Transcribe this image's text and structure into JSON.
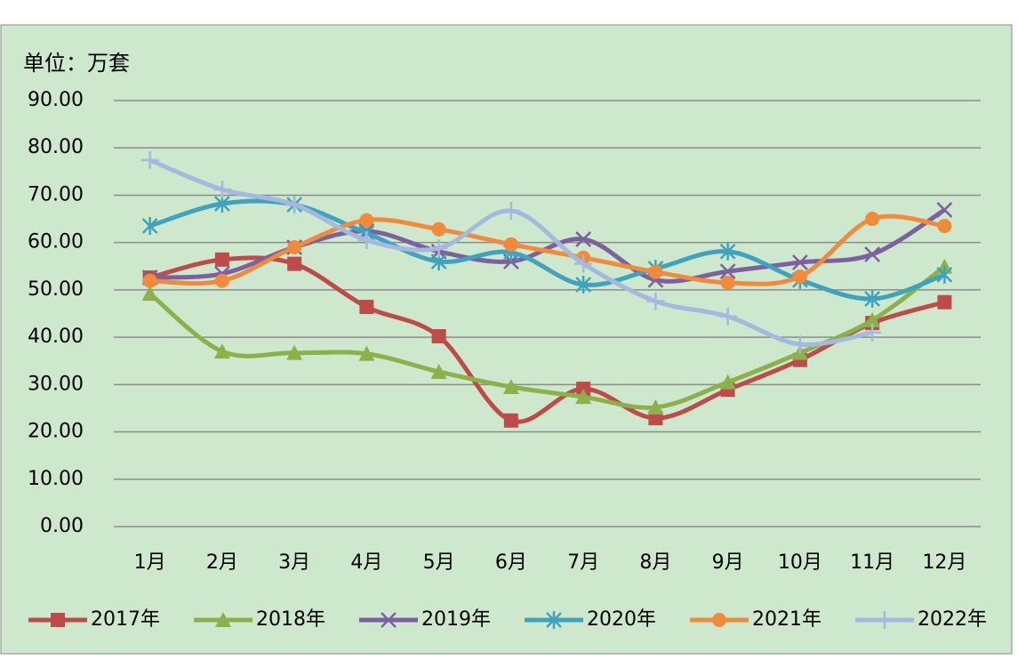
{
  "chart_data": {
    "type": "line",
    "title": "单位：万套",
    "categories": [
      "1月",
      "2月",
      "3月",
      "4月",
      "5月",
      "6月",
      "7月",
      "8月",
      "9月",
      "10月",
      "11月",
      "12月"
    ],
    "ylim": [
      0,
      90
    ],
    "yticks": [
      {
        "value": 0,
        "label": "0.00"
      },
      {
        "value": 10,
        "label": "10.00"
      },
      {
        "value": 20,
        "label": "20.00"
      },
      {
        "value": 30,
        "label": "30.00"
      },
      {
        "value": 40,
        "label": "40.00"
      },
      {
        "value": 50,
        "label": "50.00"
      },
      {
        "value": 60,
        "label": "60.00"
      },
      {
        "value": 70,
        "label": "70.00"
      },
      {
        "value": 80,
        "label": "80.00"
      },
      {
        "value": 90,
        "label": "90.00"
      }
    ],
    "grid": true,
    "smooth": true,
    "legend": "bottom",
    "series": [
      {
        "name": "2017年",
        "color": "#be4b48",
        "marker": "square",
        "values": [
          52.6,
          56.4,
          55.5,
          46.4,
          40.2,
          22.4,
          29.1,
          22.9,
          28.9,
          35.2,
          43.0,
          47.4
        ]
      },
      {
        "name": "2018年",
        "color": "#8db14a",
        "marker": "triangle",
        "values": [
          49.2,
          37.0,
          36.7,
          36.5,
          32.7,
          29.5,
          27.4,
          25.2,
          30.5,
          36.7,
          43.6,
          54.9
        ]
      },
      {
        "name": "2019年",
        "color": "#7d60a0",
        "marker": "x",
        "values": [
          52.6,
          53.4,
          59.0,
          62.4,
          58.1,
          56.0,
          60.7,
          52.1,
          53.9,
          55.8,
          57.5,
          66.9
        ]
      },
      {
        "name": "2020年",
        "color": "#3fa3bd",
        "marker": "star",
        "values": [
          63.5,
          68.2,
          68.0,
          62.0,
          56.0,
          57.9,
          51.1,
          54.5,
          58.1,
          52.1,
          48.1,
          53.2
        ]
      },
      {
        "name": "2021年",
        "color": "#f28a3c",
        "marker": "circle",
        "values": [
          51.9,
          51.9,
          59.0,
          64.7,
          62.8,
          59.6,
          56.8,
          53.8,
          51.5,
          52.8,
          65.0,
          63.5
        ]
      },
      {
        "name": "2022年",
        "color": "#a5b9e0",
        "marker": "plus",
        "values": [
          77.4,
          71.2,
          68.0,
          60.5,
          58.8,
          66.7,
          55.5,
          47.6,
          44.4,
          38.5,
          41.0,
          null
        ]
      }
    ]
  }
}
